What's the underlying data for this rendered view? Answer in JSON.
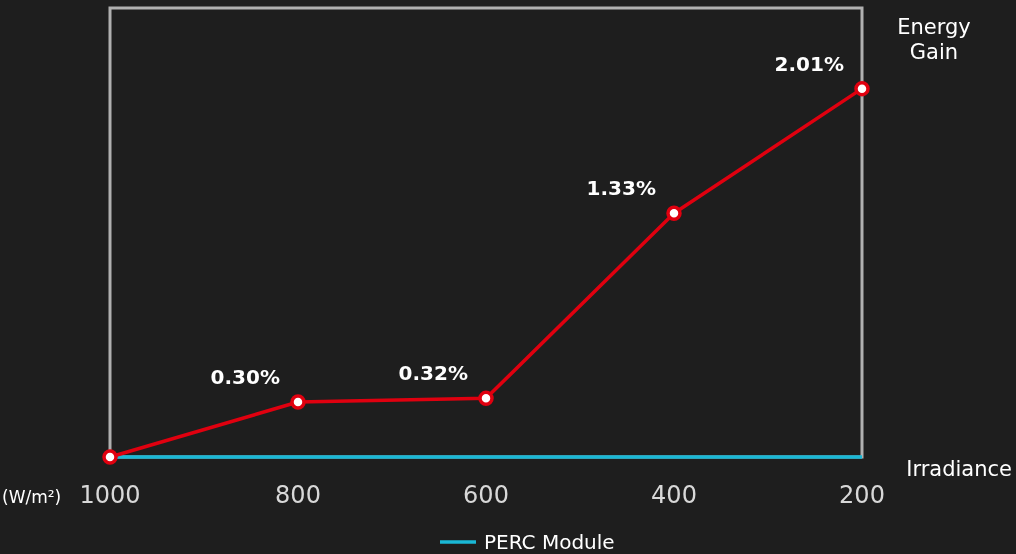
{
  "chart_data": {
    "type": "line",
    "xlabel": "Irradiance",
    "ylabel": "Energy Gain",
    "annotations": [
      "(W/m²)"
    ],
    "categories": [
      "1000",
      "800",
      "600",
      "400",
      "200"
    ],
    "ylim": [
      0,
      2.45
    ],
    "legend": "bottom",
    "marker": "circle",
    "line_style": "solid",
    "series": [
      {
        "color": "#e0000f",
        "values": [
          0,
          0.3,
          0.32,
          1.33,
          2.01
        ],
        "value_labels": [
          null,
          "0.30%",
          "0.32%",
          "1.33%",
          "2.01%"
        ]
      },
      {
        "name": "PERC Module",
        "color": "#1ab8d6",
        "values": [
          0,
          0,
          0,
          0,
          0
        ],
        "marker": "none"
      }
    ]
  }
}
